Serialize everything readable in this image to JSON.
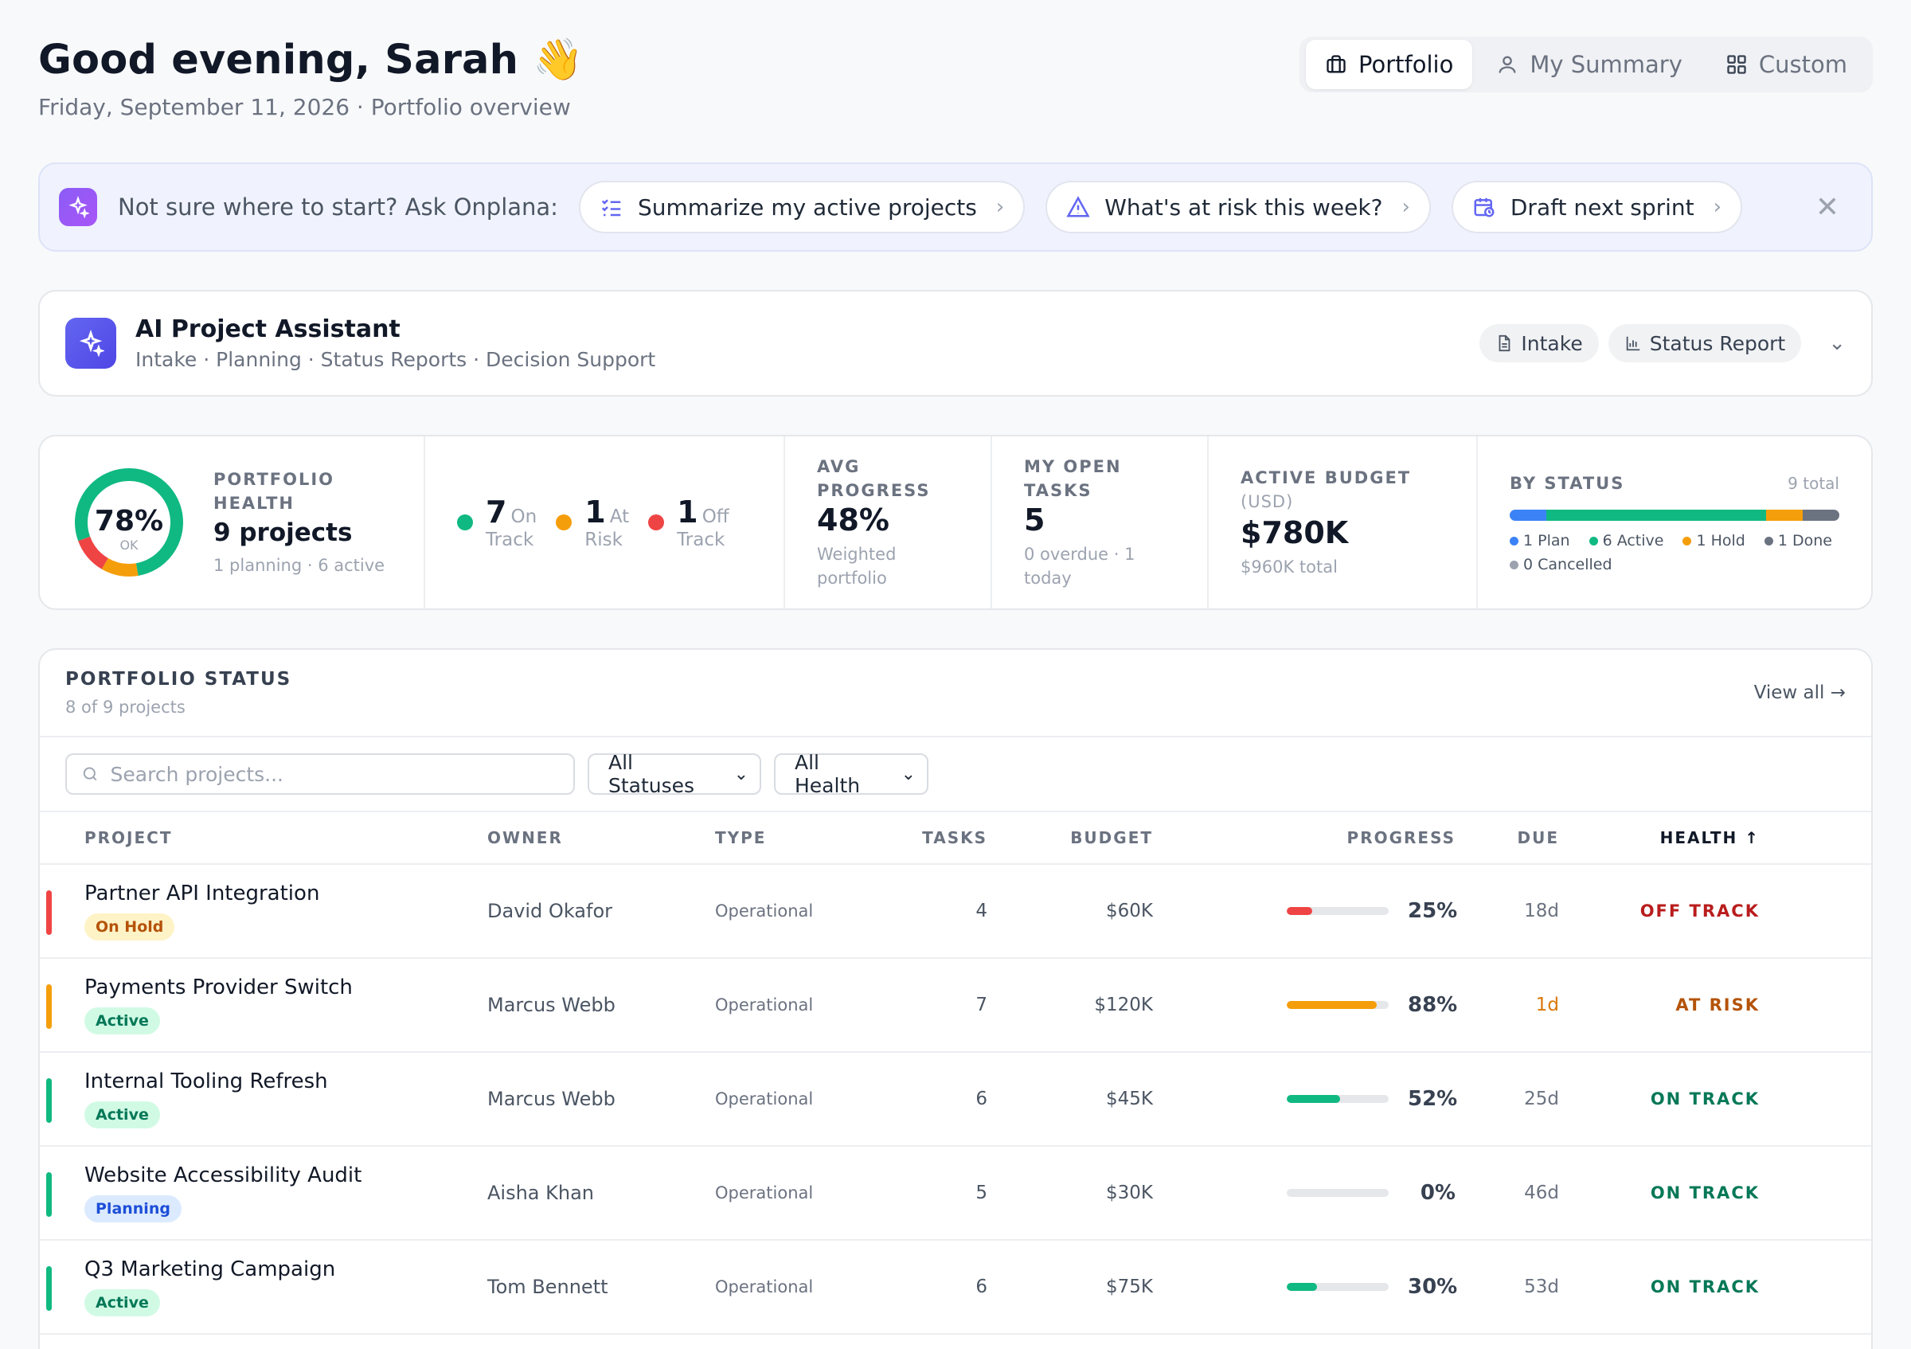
{
  "header": {
    "greeting": "Good evening, Sarah 👋",
    "subtitle": "Friday, September 11, 2026 · Portfolio overview"
  },
  "views": [
    {
      "label": "Portfolio",
      "icon": "briefcase-icon",
      "active": true
    },
    {
      "label": "My Summary",
      "icon": "user-icon",
      "active": false
    },
    {
      "label": "Custom",
      "icon": "grid-icon",
      "active": false
    }
  ],
  "ask": {
    "prompt": "Not sure where to start? Ask Onplana:",
    "chips": [
      {
        "label": "Summarize my active projects",
        "icon": "checklist-icon"
      },
      {
        "label": "What's at risk this week?",
        "icon": "warning-icon"
      },
      {
        "label": "Draft next sprint",
        "icon": "calendar-clock-icon"
      }
    ]
  },
  "assistant": {
    "title": "AI Project Assistant",
    "subtitle": "Intake · Planning · Status Reports · Decision Support",
    "intake_label": "Intake",
    "report_label": "Status Report"
  },
  "kpis": {
    "health": {
      "percent": "78%",
      "state": "OK",
      "label": "PORTFOLIO HEALTH",
      "value": "9 projects",
      "note": "1 planning · 6 active",
      "segments": {
        "on_track": 7,
        "at_risk": 1,
        "off_track": 1
      }
    },
    "breakdown": [
      {
        "count": "7",
        "word1": "On",
        "word2": "Track",
        "color": "#10b981"
      },
      {
        "count": "1",
        "word1": "At",
        "word2": "Risk",
        "color": "#f59e0b"
      },
      {
        "count": "1",
        "word1": "Off",
        "word2": "Track",
        "color": "#ef4444"
      }
    ],
    "progress": {
      "label1": "AVG",
      "label2": "PROGRESS",
      "value": "48%",
      "note1": "Weighted",
      "note2": "portfolio"
    },
    "tasks": {
      "label1": "MY OPEN",
      "label2": "TASKS",
      "value": "5",
      "note1": "0 overdue · 1",
      "note2": "today"
    },
    "budget": {
      "label": "ACTIVE BUDGET",
      "unit": "(USD)",
      "value": "$780K",
      "note": "$960K total"
    },
    "status": {
      "label": "BY STATUS",
      "total": "9 total",
      "items": [
        {
          "label": "1 Plan",
          "count": 1,
          "color": "#3b82f6"
        },
        {
          "label": "6 Active",
          "count": 6,
          "color": "#10b981"
        },
        {
          "label": "1 Hold",
          "count": 1,
          "color": "#f59e0b"
        },
        {
          "label": "1 Done",
          "count": 1,
          "color": "#6b7280"
        },
        {
          "label": "0 Cancelled",
          "count": 0,
          "color": "#9ca3af"
        }
      ]
    }
  },
  "portfolio": {
    "title": "PORTFOLIO STATUS",
    "subtitle": "8 of 9 projects",
    "view_all": "View all →",
    "search_placeholder": "Search projects...",
    "status_filter": "All Statuses",
    "health_filter": "All Health",
    "columns": {
      "project": "PROJECT",
      "owner": "OWNER",
      "type": "TYPE",
      "tasks": "TASKS",
      "budget": "BUDGET",
      "progress": "PROGRESS",
      "due": "DUE",
      "health": "HEALTH ↑"
    },
    "rows": [
      {
        "name": "Partner API Integration",
        "status": "On Hold",
        "owner": "David Okafor",
        "type": "Operational",
        "tasks": "4",
        "budget": "$60K",
        "progress": 25,
        "progress_label": "25%",
        "due": "18d",
        "health": "OFF TRACK",
        "health_color": "#b91c1c",
        "accent": "#ef4444",
        "bar": "#ef4444",
        "badge_bg": "#fef3c7",
        "badge_fg": "#b45309",
        "due_color": "#6b7280"
      },
      {
        "name": "Payments Provider Switch",
        "status": "Active",
        "owner": "Marcus Webb",
        "type": "Operational",
        "tasks": "7",
        "budget": "$120K",
        "progress": 88,
        "progress_label": "88%",
        "due": "1d",
        "health": "AT RISK",
        "health_color": "#b45309",
        "accent": "#f59e0b",
        "bar": "#f59e0b",
        "badge_bg": "#d1fae5",
        "badge_fg": "#047857",
        "due_color": "#d97706"
      },
      {
        "name": "Internal Tooling Refresh",
        "status": "Active",
        "owner": "Marcus Webb",
        "type": "Operational",
        "tasks": "6",
        "budget": "$45K",
        "progress": 52,
        "progress_label": "52%",
        "due": "25d",
        "health": "ON TRACK",
        "health_color": "#047857",
        "accent": "#10b981",
        "bar": "#10b981",
        "badge_bg": "#d1fae5",
        "badge_fg": "#047857",
        "due_color": "#6b7280"
      },
      {
        "name": "Website Accessibility Audit",
        "status": "Planning",
        "owner": "Aisha Khan",
        "type": "Operational",
        "tasks": "5",
        "budget": "$30K",
        "progress": 0,
        "progress_label": "0%",
        "due": "46d",
        "health": "ON TRACK",
        "health_color": "#047857",
        "accent": "#10b981",
        "bar": "#10b981",
        "badge_bg": "#dbeafe",
        "badge_fg": "#1d4ed8",
        "due_color": "#6b7280"
      },
      {
        "name": "Q3 Marketing Campaign",
        "status": "Active",
        "owner": "Tom Bennett",
        "type": "Operational",
        "tasks": "6",
        "budget": "$75K",
        "progress": 30,
        "progress_label": "30%",
        "due": "53d",
        "health": "ON TRACK",
        "health_color": "#047857",
        "accent": "#10b981",
        "bar": "#10b981",
        "badge_bg": "#d1fae5",
        "badge_fg": "#047857",
        "due_color": "#6b7280"
      }
    ]
  }
}
